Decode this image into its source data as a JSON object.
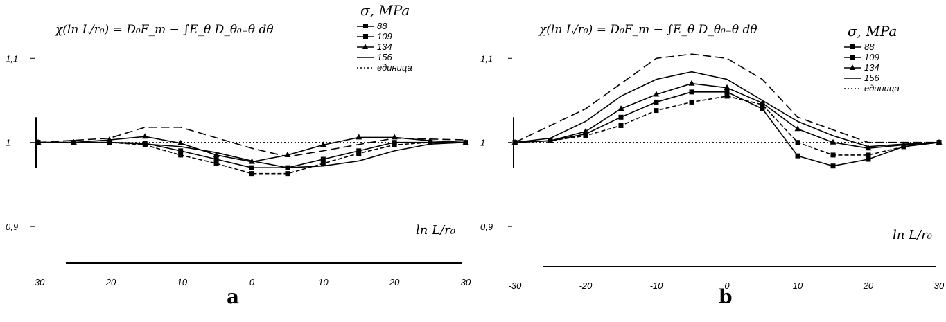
{
  "chart_data": [
    {
      "type": "line",
      "panel_label": "a",
      "formula": "χ(ln L/r₀) = D₀F_m − ∫E_θ D_θ₀₋θ dθ",
      "ylabel_ticks": [
        "1,1",
        "1",
        "0,9"
      ],
      "y_ticks": [
        1.1,
        1.0,
        0.9
      ],
      "ylim": [
        0.84,
        1.12
      ],
      "xlim": [
        -30,
        30
      ],
      "x_ticks": [
        "-30",
        "-20",
        "-10",
        "0",
        "10",
        "20",
        "30"
      ],
      "x_tick_values": [
        -30,
        -20,
        -10,
        0,
        10,
        20,
        30
      ],
      "xlabel": "ln L/r₀",
      "legend_title": "σ, MPa",
      "legend_position": "top-right",
      "x": [
        -30,
        -25,
        -20,
        -15,
        -10,
        -5,
        0,
        5,
        10,
        15,
        20,
        25,
        30
      ],
      "series": [
        {
          "name": "88",
          "marker": "square",
          "values": [
            1.0,
            1.0,
            1.0,
            0.999,
            0.99,
            0.98,
            0.97,
            0.97,
            0.98,
            0.99,
            1.0,
            1.0,
            1.0
          ]
        },
        {
          "name": "109",
          "marker": "square",
          "values": [
            1.0,
            1.0,
            1.0,
            0.997,
            0.985,
            0.975,
            0.963,
            0.963,
            0.975,
            0.987,
            0.997,
            1.0,
            1.0
          ]
        },
        {
          "name": "134",
          "marker": "triangle",
          "values": [
            1.0,
            1.0,
            1.003,
            1.007,
            0.999,
            0.985,
            0.977,
            0.985,
            0.997,
            1.006,
            1.006,
            1.002,
            1.0
          ]
        },
        {
          "name": "156",
          "marker": "none",
          "values": [
            1.0,
            1.0,
            1.0,
            0.998,
            0.995,
            0.988,
            0.978,
            0.97,
            0.972,
            0.978,
            0.99,
            0.998,
            1.0
          ]
        },
        {
          "name": "единица",
          "marker": "none",
          "dash": "dotted",
          "values": [
            1.0,
            1.0,
            1.0,
            1.0,
            1.0,
            1.0,
            1.0,
            1.0,
            1.0,
            1.0,
            1.0,
            1.0,
            1.0
          ]
        }
      ],
      "extra_curve": {
        "x": [
          -30,
          -20,
          -15,
          -10,
          0,
          5,
          10,
          20,
          30
        ],
        "values": [
          1.0,
          1.005,
          1.018,
          1.018,
          0.993,
          0.983,
          0.99,
          1.005,
          1.003
        ]
      }
    },
    {
      "type": "line",
      "panel_label": "b",
      "formula": "χ(ln L/r₀) = D₀F_m − ∫E_θ D_θ₀₋θ dθ",
      "ylabel_ticks": [
        "1,1",
        "1",
        "0,9"
      ],
      "y_ticks": [
        1.1,
        1.0,
        0.9
      ],
      "ylim": [
        0.84,
        1.12
      ],
      "xlim": [
        -30,
        30
      ],
      "x_ticks": [
        "-30",
        "-20",
        "-10",
        "0",
        "10",
        "20",
        "30"
      ],
      "x_tick_values": [
        -30,
        -20,
        -10,
        0,
        10,
        20,
        30
      ],
      "xlabel": "ln L/r₀",
      "legend_title": "σ, MPa",
      "legend_position": "top-right",
      "x": [
        -30,
        -25,
        -20,
        -15,
        -10,
        -5,
        0,
        5,
        10,
        15,
        20,
        25,
        30
      ],
      "series": [
        {
          "name": "88",
          "marker": "square",
          "values": [
            1.0,
            1.002,
            1.01,
            1.03,
            1.048,
            1.06,
            1.06,
            1.04,
            0.984,
            0.972,
            0.98,
            0.995,
            1.0
          ]
        },
        {
          "name": "109",
          "marker": "square",
          "values": [
            1.0,
            1.002,
            1.008,
            1.02,
            1.038,
            1.048,
            1.055,
            1.045,
            1.0,
            0.985,
            0.985,
            0.995,
            1.0
          ]
        },
        {
          "name": "134",
          "marker": "triangle",
          "values": [
            1.0,
            1.002,
            1.013,
            1.04,
            1.057,
            1.07,
            1.065,
            1.047,
            1.016,
            1.0,
            0.993,
            0.997,
            1.0
          ]
        },
        {
          "name": "156",
          "marker": "none",
          "values": [
            1.0,
            1.005,
            1.025,
            1.055,
            1.075,
            1.084,
            1.075,
            1.05,
            1.025,
            1.008,
            0.995,
            0.998,
            1.0
          ]
        },
        {
          "name": "единица",
          "marker": "none",
          "dash": "dotted",
          "values": [
            1.0,
            1.0,
            1.0,
            1.0,
            1.0,
            1.0,
            1.0,
            1.0,
            1.0,
            1.0,
            1.0,
            1.0,
            1.0
          ]
        }
      ],
      "extra_curve": {
        "x": [
          -30,
          -20,
          -10,
          -5,
          0,
          5,
          10,
          20,
          30
        ],
        "values": [
          1.0,
          1.04,
          1.1,
          1.105,
          1.1,
          1.075,
          1.03,
          1.0,
          1.0
        ]
      }
    }
  ]
}
